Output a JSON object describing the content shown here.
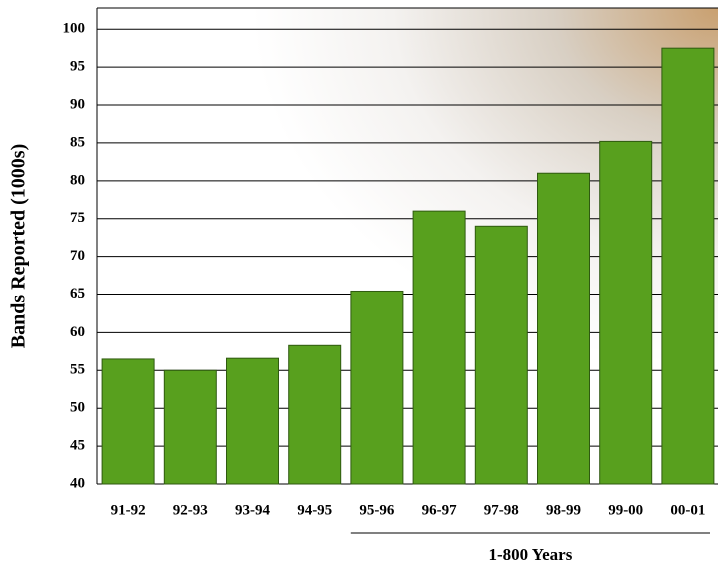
{
  "chart_data": {
    "type": "bar",
    "y_label": "Bands Reported (1000s)",
    "categories": [
      "91-92",
      "92-93",
      "93-94",
      "94-95",
      "95-96",
      "96-97",
      "97-98",
      "98-99",
      "99-00",
      "00-01"
    ],
    "values": [
      56.5,
      55,
      56.6,
      58.3,
      65.4,
      76,
      74,
      81,
      85.2,
      97.5
    ],
    "color": "#58a01e",
    "ylim": [
      40,
      102.8
    ],
    "yticks": [
      40,
      45,
      50,
      55,
      60,
      65,
      70,
      75,
      80,
      85,
      90,
      95,
      100
    ],
    "grid": true,
    "annotation": "1-800 Years"
  }
}
